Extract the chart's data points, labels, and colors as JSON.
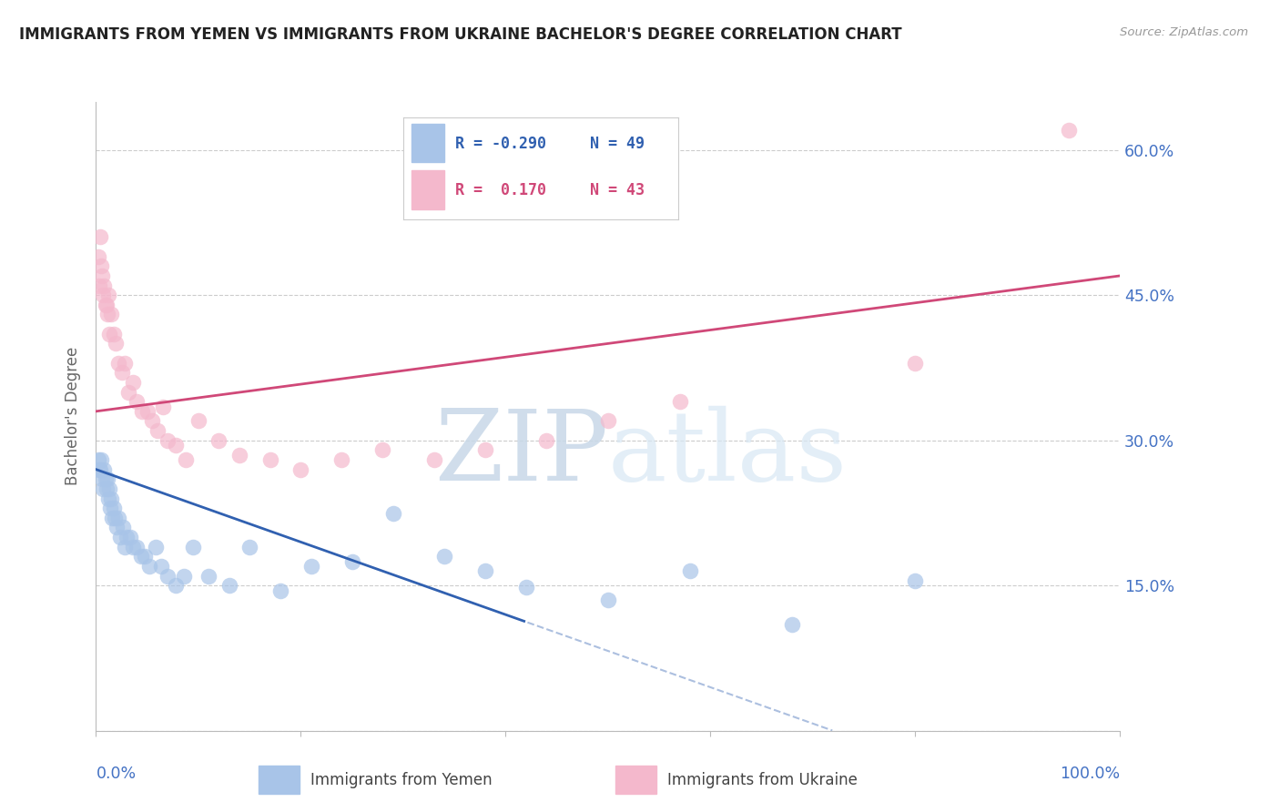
{
  "title": "IMMIGRANTS FROM YEMEN VS IMMIGRANTS FROM UKRAINE BACHELOR'S DEGREE CORRELATION CHART",
  "source": "Source: ZipAtlas.com",
  "ylabel": "Bachelor's Degree",
  "watermark_zip": "ZIP",
  "watermark_atlas": "atlas",
  "blue_scatter_color": "#a8c4e8",
  "pink_scatter_color": "#f4b8cc",
  "blue_line_color": "#3060b0",
  "pink_line_color": "#d04878",
  "axis_label_color": "#4472c4",
  "ylabel_color": "#666666",
  "grid_color": "#cccccc",
  "title_color": "#222222",
  "source_color": "#999999",
  "R_yemen": -0.29,
  "N_yemen": 49,
  "R_ukraine": 0.17,
  "N_ukraine": 43,
  "yemen_x": [
    0.002,
    0.003,
    0.004,
    0.005,
    0.006,
    0.007,
    0.008,
    0.009,
    0.01,
    0.011,
    0.012,
    0.013,
    0.014,
    0.015,
    0.016,
    0.017,
    0.018,
    0.02,
    0.022,
    0.024,
    0.026,
    0.028,
    0.03,
    0.033,
    0.036,
    0.04,
    0.044,
    0.048,
    0.052,
    0.058,
    0.064,
    0.07,
    0.078,
    0.086,
    0.095,
    0.11,
    0.13,
    0.15,
    0.18,
    0.21,
    0.25,
    0.29,
    0.34,
    0.38,
    0.42,
    0.5,
    0.58,
    0.68,
    0.8
  ],
  "yemen_y": [
    0.28,
    0.27,
    0.27,
    0.28,
    0.26,
    0.25,
    0.27,
    0.26,
    0.25,
    0.26,
    0.24,
    0.25,
    0.23,
    0.24,
    0.22,
    0.23,
    0.22,
    0.21,
    0.22,
    0.2,
    0.21,
    0.19,
    0.2,
    0.2,
    0.19,
    0.19,
    0.18,
    0.18,
    0.17,
    0.19,
    0.17,
    0.16,
    0.15,
    0.16,
    0.19,
    0.16,
    0.15,
    0.19,
    0.145,
    0.17,
    0.175,
    0.225,
    0.18,
    0.165,
    0.148,
    0.135,
    0.165,
    0.11,
    0.155
  ],
  "ukraine_x": [
    0.002,
    0.003,
    0.004,
    0.005,
    0.006,
    0.007,
    0.008,
    0.009,
    0.01,
    0.011,
    0.012,
    0.013,
    0.015,
    0.017,
    0.019,
    0.022,
    0.025,
    0.028,
    0.032,
    0.036,
    0.04,
    0.045,
    0.05,
    0.055,
    0.06,
    0.065,
    0.07,
    0.078,
    0.088,
    0.1,
    0.12,
    0.14,
    0.17,
    0.2,
    0.24,
    0.28,
    0.33,
    0.38,
    0.44,
    0.5,
    0.57,
    0.8,
    0.95
  ],
  "ukraine_y": [
    0.49,
    0.46,
    0.51,
    0.48,
    0.47,
    0.45,
    0.46,
    0.44,
    0.44,
    0.43,
    0.45,
    0.41,
    0.43,
    0.41,
    0.4,
    0.38,
    0.37,
    0.38,
    0.35,
    0.36,
    0.34,
    0.33,
    0.33,
    0.32,
    0.31,
    0.335,
    0.3,
    0.295,
    0.28,
    0.32,
    0.3,
    0.285,
    0.28,
    0.27,
    0.28,
    0.29,
    0.28,
    0.29,
    0.3,
    0.32,
    0.34,
    0.38,
    0.62
  ],
  "xlim": [
    0.0,
    1.0
  ],
  "ylim": [
    0.0,
    0.65
  ],
  "ytick_positions": [
    0.0,
    0.15,
    0.3,
    0.45,
    0.6
  ],
  "ytick_labels": [
    "",
    "15.0%",
    "30.0%",
    "45.0%",
    "60.0%"
  ],
  "xtick_positions": [
    0.0,
    0.2,
    0.4,
    0.6,
    0.8,
    1.0
  ],
  "legend_box_color": "#eeeeee",
  "legend_border_color": "#cccccc"
}
